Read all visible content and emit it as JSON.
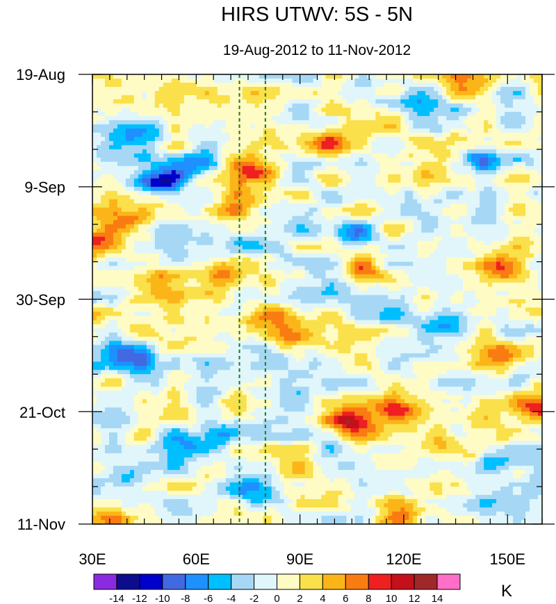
{
  "chart_data": {
    "type": "heatmap",
    "title": "HIRS UTWV: 5S - 5N",
    "subtitle": "19-Aug-2012 to 11-Nov-2012",
    "x_axis": {
      "range": [
        30,
        160
      ],
      "ticks": [
        30,
        60,
        90,
        120,
        150
      ],
      "tick_labels": [
        "30E",
        "60E",
        "90E",
        "120E",
        "150E"
      ],
      "minor_step": 5
    },
    "y_axis": {
      "range_days": [
        0,
        84
      ],
      "ticks": [
        0,
        21,
        42,
        63,
        84
      ],
      "tick_labels": [
        "19-Aug",
        "9-Sep",
        "30-Sep",
        "21-Oct",
        "11-Nov"
      ],
      "minor_step": 7,
      "direction": "top-to-bottom"
    },
    "reference_lines": [
      {
        "lon": 72.5,
        "style": "dashed",
        "color": "#1e7a1e"
      },
      {
        "lon": 80,
        "style": "dashed",
        "color": "#1e7a1e"
      }
    ],
    "colorbar": {
      "units": "K",
      "levels": [
        -14,
        -12,
        -10,
        -8,
        -6,
        -4,
        -2,
        0,
        2,
        4,
        6,
        8,
        10,
        12,
        14
      ],
      "labels": [
        "-14",
        "-12",
        "-10",
        "-8",
        "-6",
        "-4",
        "-2",
        "0",
        "2",
        "4",
        "6",
        "8",
        "10",
        "12",
        "14"
      ],
      "colors": [
        "#8a2be2",
        "#0c0c8c",
        "#0000cd",
        "#4169e1",
        "#1e90ff",
        "#00bfff",
        "#a6d8f5",
        "#e0f6fb",
        "#fffbc4",
        "#fae04a",
        "#fbb518",
        "#f97c12",
        "#ee2020",
        "#c4101a",
        "#a02828",
        "#ff6ec7"
      ]
    },
    "anomaly_features": [
      {
        "lon": 48,
        "day": 20,
        "value": -14
      },
      {
        "lon": 44,
        "day": 12,
        "value": -7
      },
      {
        "lon": 60,
        "day": 17,
        "value": -6
      },
      {
        "lon": 78,
        "day": 18,
        "value": 8
      },
      {
        "lon": 97,
        "day": 13,
        "value": 7
      },
      {
        "lon": 70,
        "day": 25,
        "value": 6
      },
      {
        "lon": 32,
        "day": 30,
        "value": 6
      },
      {
        "lon": 38,
        "day": 27,
        "value": 5
      },
      {
        "lon": 68,
        "day": 38,
        "value": 8
      },
      {
        "lon": 52,
        "day": 38,
        "value": 6
      },
      {
        "lon": 82,
        "day": 45,
        "value": 9
      },
      {
        "lon": 88,
        "day": 50,
        "value": 5
      },
      {
        "lon": 108,
        "day": 36,
        "value": 5
      },
      {
        "lon": 105,
        "day": 65,
        "value": 12
      },
      {
        "lon": 118,
        "day": 63,
        "value": 8
      },
      {
        "lon": 145,
        "day": 53,
        "value": 7
      },
      {
        "lon": 158,
        "day": 62,
        "value": 9
      },
      {
        "lon": 150,
        "day": 36,
        "value": 6
      },
      {
        "lon": 130,
        "day": 68,
        "value": 5
      },
      {
        "lon": 40,
        "day": 53,
        "value": -8
      },
      {
        "lon": 70,
        "day": 67,
        "value": -9
      },
      {
        "lon": 55,
        "day": 70,
        "value": -7
      },
      {
        "lon": 40,
        "day": 75,
        "value": -7
      },
      {
        "lon": 75,
        "day": 78,
        "value": -6
      },
      {
        "lon": 128,
        "day": 47,
        "value": -7
      },
      {
        "lon": 142,
        "day": 16,
        "value": -7
      },
      {
        "lon": 150,
        "day": 72,
        "value": -6
      },
      {
        "lon": 105,
        "day": 30,
        "value": -6
      },
      {
        "lon": 120,
        "day": 5,
        "value": -5
      },
      {
        "lon": 120,
        "day": 83,
        "value": 8
      },
      {
        "lon": 140,
        "day": 2,
        "value": 6
      },
      {
        "lon": 35,
        "day": 83,
        "value": 6
      }
    ]
  }
}
